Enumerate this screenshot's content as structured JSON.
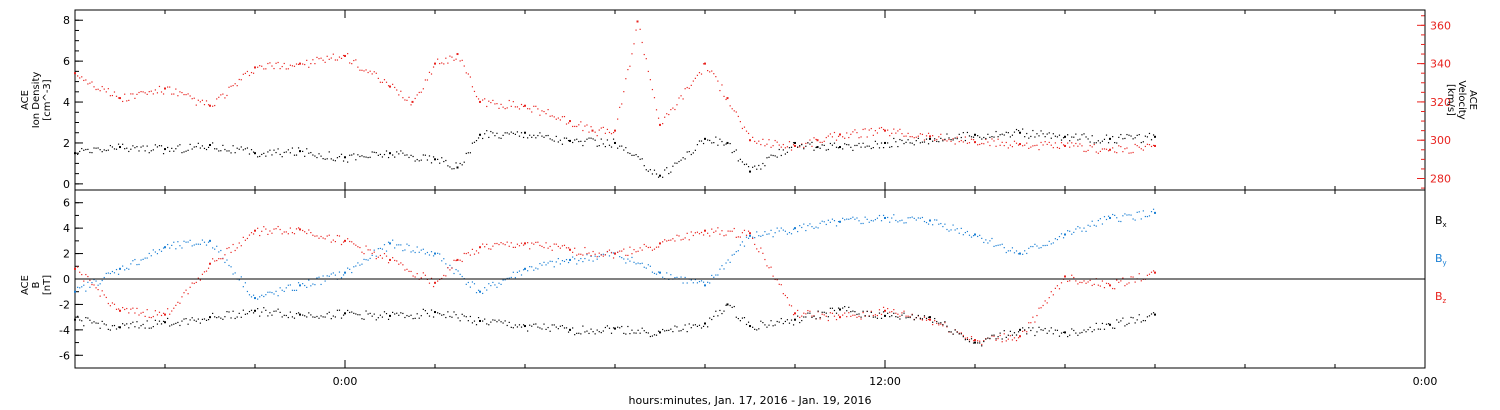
{
  "chart_data": [
    {
      "type": "scatter",
      "panel": "top",
      "ylabel_left": [
        "ACE",
        "Ion Density",
        "[cm^-3]"
      ],
      "ylabel_right": [
        "ACE",
        "Velocity",
        "[km/s]"
      ],
      "y_left_ticks": [
        "0",
        "2",
        "4",
        "6",
        "8"
      ],
      "y_left_lim": [
        -0.3,
        8.5
      ],
      "y_right_ticks": [
        "280",
        "300",
        "320",
        "340",
        "360"
      ],
      "y_right_lim": [
        274,
        368
      ],
      "series": [
        {
          "axis": "left",
          "color": "#000000",
          "x": [
            -6.0,
            -5.0,
            -4.0,
            -3.0,
            -2.0,
            -1.0,
            0.0,
            1.0,
            2.0,
            2.5,
            3.0,
            4.0,
            5.0,
            6.0,
            7.0,
            8.0,
            8.5,
            9.0,
            10.0,
            10.5,
            11.0,
            12.0,
            13.0,
            14.0,
            15.0,
            16.0,
            17.0,
            18.0
          ],
          "y": [
            1.5,
            1.8,
            1.7,
            1.9,
            1.5,
            1.6,
            1.3,
            1.5,
            1.2,
            0.8,
            2.4,
            2.5,
            2.1,
            2.0,
            0.4,
            2.2,
            2.0,
            0.6,
            2.0,
            1.8,
            1.8,
            2.0,
            2.2,
            2.4,
            2.5,
            2.3,
            2.2,
            2.3
          ]
        },
        {
          "axis": "right",
          "color": "#e8231f",
          "x": [
            -6.0,
            -5.0,
            -4.0,
            -3.0,
            -2.0,
            -1.0,
            0.0,
            1.0,
            1.5,
            2.0,
            2.5,
            3.0,
            4.0,
            5.0,
            5.5,
            6.0,
            6.5,
            7.0,
            8.0,
            8.5,
            9.0,
            10.0,
            10.5,
            11.0,
            12.0,
            13.0,
            14.0,
            15.0,
            16.0,
            17.0,
            18.0
          ],
          "y": [
            335,
            322,
            327,
            318,
            338,
            340,
            344,
            328,
            320,
            340,
            345,
            320,
            318,
            310,
            305,
            305,
            362,
            308,
            340,
            322,
            300,
            297,
            300,
            303,
            305,
            302,
            299,
            298,
            297,
            295,
            297
          ]
        }
      ]
    },
    {
      "type": "scatter",
      "panel": "bottom",
      "ylabel_left": [
        "ACE",
        "B",
        "[nT]"
      ],
      "y_ticks": [
        "-6",
        "-4",
        "-2",
        "0",
        "2",
        "4",
        "6"
      ],
      "ylim": [
        -7,
        7
      ],
      "zero_line": true,
      "legend": [
        {
          "label": "B",
          "sub": "x",
          "color": "#000000"
        },
        {
          "label": "B",
          "sub": "y",
          "color": "#1a7fd4"
        },
        {
          "label": "B",
          "sub": "z",
          "color": "#e8231f"
        }
      ],
      "series": [
        {
          "name": "Bx",
          "color": "#000000",
          "x": [
            -6.0,
            -5.0,
            -4.0,
            -3.0,
            -2.0,
            -1.0,
            0.0,
            1.0,
            2.0,
            3.0,
            4.0,
            5.0,
            6.0,
            7.0,
            8.0,
            8.5,
            9.0,
            10.0,
            11.0,
            12.0,
            13.0,
            14.0,
            15.0,
            16.0,
            17.0,
            18.0
          ],
          "y": [
            -3.2,
            -3.8,
            -3.4,
            -3.0,
            -2.5,
            -2.8,
            -2.7,
            -2.9,
            -2.6,
            -3.3,
            -3.7,
            -4.0,
            -3.9,
            -4.2,
            -3.5,
            -2.0,
            -3.7,
            -3.2,
            -2.4,
            -2.9,
            -3.0,
            -5.0,
            -4.0,
            -4.2,
            -3.6,
            -2.8
          ]
        },
        {
          "name": "By",
          "color": "#1a7fd4",
          "x": [
            -6.0,
            -5.0,
            -4.0,
            -3.0,
            -2.0,
            -1.0,
            0.0,
            1.0,
            2.0,
            3.0,
            4.0,
            5.0,
            6.0,
            7.0,
            8.0,
            9.0,
            10.0,
            11.0,
            12.0,
            13.0,
            14.0,
            15.0,
            16.0,
            17.0,
            18.0
          ],
          "y": [
            -1.0,
            0.8,
            2.5,
            3.0,
            -1.5,
            -0.5,
            0.5,
            2.8,
            2.0,
            -1.0,
            0.8,
            1.5,
            2.0,
            0.5,
            -0.5,
            3.4,
            4.0,
            4.5,
            4.8,
            4.6,
            3.5,
            2.0,
            3.5,
            4.8,
            5.2
          ]
        },
        {
          "name": "Bz",
          "color": "#e8231f",
          "x": [
            -6.0,
            -5.0,
            -4.0,
            -3.0,
            -2.0,
            -1.0,
            0.0,
            1.0,
            2.0,
            2.5,
            3.0,
            4.0,
            5.0,
            6.0,
            7.0,
            8.0,
            9.0,
            10.0,
            11.0,
            12.0,
            13.0,
            14.0,
            15.0,
            16.0,
            17.0,
            18.0
          ],
          "y": [
            0.8,
            -2.5,
            -2.8,
            1.2,
            3.8,
            3.9,
            3.0,
            1.5,
            -0.3,
            1.5,
            2.5,
            2.8,
            2.3,
            2.0,
            2.8,
            3.8,
            3.6,
            -2.7,
            -3.0,
            -2.5,
            -3.2,
            -4.8,
            -4.5,
            0.2,
            -0.5,
            0.5
          ]
        }
      ]
    }
  ],
  "x_axis": {
    "tick_labels": [
      "0:00",
      "12:00",
      "0:00"
    ],
    "tick_hours": [
      0,
      12,
      24
    ],
    "xlim_hours": [
      -6,
      24
    ],
    "label": "hours:minutes, Jan. 17, 2016 - Jan. 19, 2016"
  }
}
